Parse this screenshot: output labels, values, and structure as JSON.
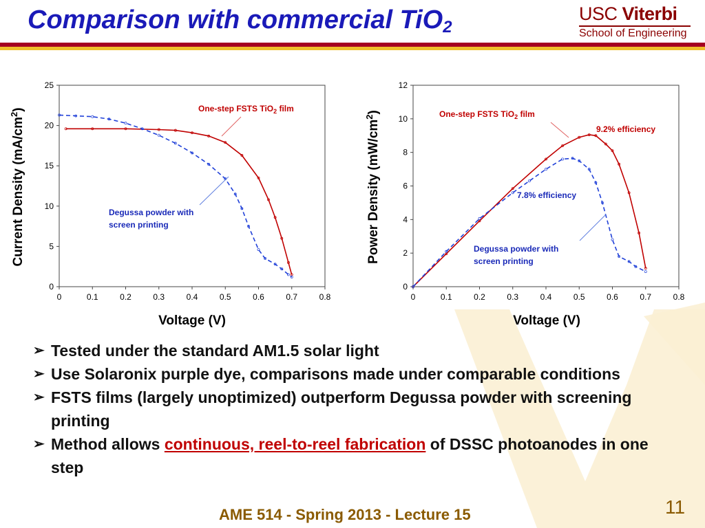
{
  "title": {
    "main": "Comparison with commercial TiO",
    "sub": "2"
  },
  "logo": {
    "usc": "USC",
    "viterbi": "Viterbi",
    "school": "School of Engineering"
  },
  "chart_data": [
    {
      "type": "line",
      "ylabel": "Current Density (mA/cm",
      "ylabel_sup": "2",
      "ylabel_tail": ")",
      "xlabel": "Voltage (V)",
      "xlim": [
        0,
        0.8
      ],
      "ylim": [
        0,
        25
      ],
      "xticks": [
        "0",
        "0.1",
        "0.2",
        "0.3",
        "0.4",
        "0.5",
        "0.6",
        "0.7",
        "0.8"
      ],
      "yticks": [
        "0",
        "5",
        "10",
        "15",
        "20",
        "25"
      ],
      "annotations": [
        {
          "text": "One-step FSTS TiO",
          "sub": "2",
          "tail": " film",
          "color": "#c00000"
        },
        {
          "line1": "Degussa powder with",
          "line2": "screen printing",
          "color": "#1a2ab8"
        }
      ],
      "series": [
        {
          "color": "#c00000",
          "dash": false,
          "x": [
            0.02,
            0.1,
            0.2,
            0.3,
            0.35,
            0.4,
            0.45,
            0.5,
            0.55,
            0.6,
            0.63,
            0.65,
            0.67,
            0.69,
            0.7
          ],
          "y": [
            19.6,
            19.6,
            19.6,
            19.5,
            19.4,
            19.1,
            18.7,
            17.9,
            16.3,
            13.5,
            10.8,
            8.6,
            6.0,
            3.0,
            1.5
          ]
        },
        {
          "color": "#2040d8",
          "dash": true,
          "x": [
            0.0,
            0.05,
            0.1,
            0.15,
            0.2,
            0.25,
            0.3,
            0.35,
            0.4,
            0.45,
            0.5,
            0.53,
            0.55,
            0.57,
            0.6,
            0.62,
            0.65,
            0.67,
            0.69,
            0.7
          ],
          "y": [
            21.3,
            21.2,
            21.1,
            20.8,
            20.3,
            19.6,
            18.8,
            17.8,
            16.6,
            15.2,
            13.4,
            11.5,
            9.7,
            7.5,
            4.6,
            3.5,
            2.8,
            2.2,
            1.5,
            1.2
          ]
        }
      ]
    },
    {
      "type": "line",
      "ylabel": "Power Density (mW/cm",
      "ylabel_sup": "2",
      "ylabel_tail": ")",
      "xlabel": "Voltage (V)",
      "xlim": [
        0,
        0.8
      ],
      "ylim": [
        0,
        12
      ],
      "xticks": [
        "0",
        "0.1",
        "0.2",
        "0.3",
        "0.4",
        "0.5",
        "0.6",
        "0.7",
        "0.8"
      ],
      "yticks": [
        "0",
        "2",
        "4",
        "6",
        "8",
        "10",
        "12"
      ],
      "annotations": [
        {
          "text": "One-step FSTS TiO",
          "sub": "2",
          "tail": " film",
          "color": "#c00000"
        },
        {
          "text": "9.2% efficiency",
          "color": "#c00000"
        },
        {
          "text": "7.8% efficiency",
          "color": "#1a2ab8"
        },
        {
          "line1": "Degussa powder with",
          "line2": "screen printing",
          "color": "#1a2ab8"
        }
      ],
      "series": [
        {
          "color": "#c00000",
          "dash": false,
          "x": [
            0.0,
            0.1,
            0.2,
            0.3,
            0.4,
            0.45,
            0.5,
            0.53,
            0.55,
            0.58,
            0.6,
            0.62,
            0.65,
            0.68,
            0.7
          ],
          "y": [
            0.0,
            1.96,
            3.92,
            5.85,
            7.6,
            8.4,
            8.9,
            9.05,
            9.0,
            8.5,
            8.1,
            7.3,
            5.6,
            3.2,
            1.1
          ]
        },
        {
          "color": "#2040d8",
          "dash": true,
          "x": [
            0.0,
            0.1,
            0.2,
            0.3,
            0.35,
            0.4,
            0.45,
            0.48,
            0.5,
            0.53,
            0.55,
            0.57,
            0.6,
            0.62,
            0.65,
            0.67,
            0.7
          ],
          "y": [
            0.0,
            2.1,
            4.06,
            5.6,
            6.3,
            7.0,
            7.6,
            7.65,
            7.5,
            7.0,
            6.2,
            5.0,
            2.8,
            1.8,
            1.5,
            1.2,
            0.9
          ]
        }
      ]
    }
  ],
  "bullets": [
    {
      "text": "Tested under the standard AM1.5 solar light"
    },
    {
      "text": "Use Solaronix purple dye, comparisons made under comparable conditions"
    },
    {
      "text": "FSTS films (largely unoptimized) outperform Degussa powder with screening printing"
    },
    {
      "pre": "Method allows ",
      "link": "continuous, reel-to-reel fabrication",
      "post": " of DSSC photoanodes in one step"
    }
  ],
  "bullet_marker": "➢",
  "footer": "AME 514 - Spring 2013 - Lecture 15",
  "page_number": "11"
}
